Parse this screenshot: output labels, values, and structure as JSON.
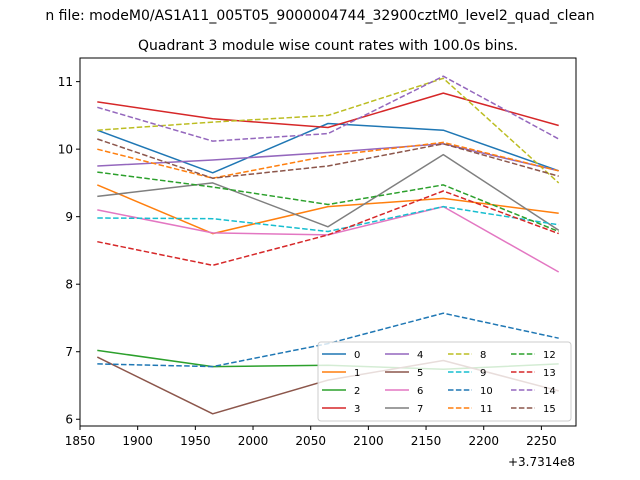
{
  "chart_data": {
    "type": "line",
    "suptitle": "n file: modeM0/AS1A11_005T05_9000004744_32900cztM0_level2_quad_clean",
    "title": "Quadrant 3 module wise count rates with 100.0s bins.",
    "xlabel": "",
    "ylabel": "",
    "x_offset_label": "+3.7314e8",
    "x": [
      1865,
      1965,
      2065,
      2165,
      2265
    ],
    "xlim": [
      1850,
      2280
    ],
    "ylim": [
      5.9,
      11.35
    ],
    "xticks": [
      1850,
      1900,
      1950,
      2000,
      2050,
      2100,
      2150,
      2200,
      2250
    ],
    "yticks": [
      6,
      7,
      8,
      9,
      10,
      11
    ],
    "grid": false,
    "legend": {
      "placement": "lower-right",
      "columns": 4
    },
    "series": [
      {
        "name": "0",
        "color": "#1f77b4",
        "dash": "solid",
        "values": [
          10.28,
          9.65,
          10.38,
          10.28,
          9.68
        ]
      },
      {
        "name": "1",
        "color": "#ff7f0e",
        "dash": "solid",
        "values": [
          9.47,
          8.75,
          9.15,
          9.27,
          9.05
        ]
      },
      {
        "name": "2",
        "color": "#2ca02c",
        "dash": "solid",
        "values": [
          7.02,
          6.78,
          6.8,
          6.74,
          6.82
        ]
      },
      {
        "name": "3",
        "color": "#d62728",
        "dash": "solid",
        "values": [
          10.7,
          10.45,
          10.32,
          10.83,
          10.35
        ]
      },
      {
        "name": "4",
        "color": "#9467bd",
        "dash": "solid",
        "values": [
          9.75,
          9.84,
          9.95,
          10.08,
          9.68
        ]
      },
      {
        "name": "5",
        "color": "#8c564b",
        "dash": "solid",
        "values": [
          6.92,
          6.08,
          6.58,
          6.87,
          6.42
        ]
      },
      {
        "name": "6",
        "color": "#e377c2",
        "dash": "solid",
        "values": [
          9.1,
          8.76,
          8.73,
          9.15,
          8.18
        ]
      },
      {
        "name": "7",
        "color": "#7f7f7f",
        "dash": "solid",
        "values": [
          9.3,
          9.5,
          8.85,
          9.92,
          8.8
        ]
      },
      {
        "name": "8",
        "color": "#bcbd22",
        "dash": "dashed",
        "values": [
          10.28,
          10.4,
          10.5,
          11.05,
          9.5
        ]
      },
      {
        "name": "9",
        "color": "#17becf",
        "dash": "dashed",
        "values": [
          8.98,
          8.97,
          8.78,
          9.15,
          8.88
        ]
      },
      {
        "name": "10",
        "color": "#1f77b4",
        "dash": "dashed",
        "values": [
          6.82,
          6.78,
          7.12,
          7.57,
          7.2
        ]
      },
      {
        "name": "11",
        "color": "#ff7f0e",
        "dash": "dashed",
        "values": [
          10.0,
          9.57,
          9.9,
          10.1,
          9.68
        ]
      },
      {
        "name": "12",
        "color": "#2ca02c",
        "dash": "dashed",
        "values": [
          9.66,
          9.44,
          9.18,
          9.47,
          8.78
        ]
      },
      {
        "name": "13",
        "color": "#d62728",
        "dash": "dashed",
        "values": [
          8.63,
          8.28,
          8.73,
          9.38,
          8.75
        ]
      },
      {
        "name": "14",
        "color": "#9467bd",
        "dash": "dashed",
        "values": [
          10.62,
          10.12,
          10.23,
          11.08,
          10.15
        ]
      },
      {
        "name": "15",
        "color": "#8c564b",
        "dash": "dashed",
        "values": [
          10.15,
          9.57,
          9.75,
          10.08,
          9.6
        ]
      }
    ]
  }
}
